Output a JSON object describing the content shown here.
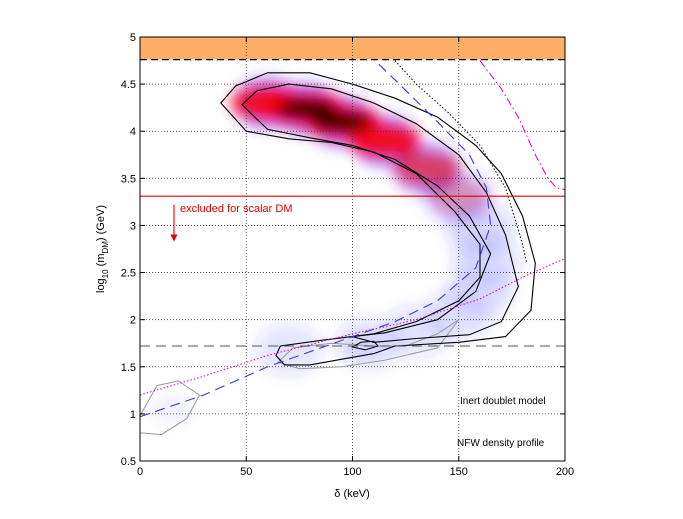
{
  "chart_data": {
    "type": "contour",
    "xlabel": "δ (keV)",
    "ylabel_parts": {
      "a": "log",
      "b": "10",
      "c": " (m",
      "d": "DM",
      "e": ") (GeV)"
    },
    "xlim": [
      0,
      200
    ],
    "ylim": [
      0.5,
      5
    ],
    "xticks": [
      0,
      50,
      100,
      150,
      200
    ],
    "xtick_labels": [
      "0",
      "50",
      "100",
      "150",
      "200"
    ],
    "yticks": [
      0.5,
      1,
      1.5,
      2,
      2.5,
      3,
      3.5,
      4,
      4.5,
      5
    ],
    "ytick_labels": [
      "0.5",
      "1",
      "1.5",
      "2",
      "2.5",
      "3",
      "3.5",
      "4",
      "4.5",
      "5"
    ],
    "grid": true,
    "annotations": {
      "excluded": "excluded for scalar DM",
      "model": "Inert doublet model",
      "profile": "NFW density profile"
    },
    "colors": {
      "band": "#ffae66",
      "red_line": "#e00000",
      "blue_dash": "#3a3ae0",
      "magenta": "#cc00cc",
      "heat_peak": "#000000",
      "heat_mid": "#ff0000",
      "heat_low": "#3232ff"
    },
    "excluded_band": {
      "y_from": 4.76,
      "y_to": 5.0
    },
    "red_line_y": 3.31,
    "arrow": {
      "x": 16,
      "y_from": 3.22,
      "y_to": 2.83
    },
    "lower_dashed_y": 1.72,
    "density_ridge": [
      [
        60,
        4.3,
        26
      ],
      [
        78,
        4.24,
        36
      ],
      [
        95,
        4.1,
        32
      ],
      [
        115,
        3.9,
        26
      ],
      [
        135,
        3.6,
        18
      ],
      [
        150,
        3.3,
        8
      ],
      [
        160,
        2.95,
        3
      ],
      [
        163,
        2.6,
        1.5
      ],
      [
        160,
        2.3,
        1
      ],
      [
        150,
        2.05,
        0.6
      ],
      [
        130,
        1.88,
        0.4
      ],
      [
        108,
        1.75,
        0.3
      ],
      [
        70,
        1.68,
        0.2
      ]
    ],
    "faint_blobs": [
      [
        15,
        1.05,
        0.25
      ],
      [
        105,
        1.72,
        0.35
      ]
    ],
    "outer_contour": [
      [
        38,
        4.3
      ],
      [
        45,
        4.48
      ],
      [
        60,
        4.62
      ],
      [
        80,
        4.62
      ],
      [
        100,
        4.5
      ],
      [
        120,
        4.35
      ],
      [
        140,
        4.15
      ],
      [
        158,
        3.85
      ],
      [
        170,
        3.55
      ],
      [
        180,
        3.1
      ],
      [
        186,
        2.6
      ],
      [
        184,
        2.1
      ],
      [
        172,
        1.82
      ],
      [
        150,
        1.76
      ],
      [
        120,
        1.72
      ],
      [
        110,
        1.64
      ],
      [
        95,
        1.58
      ],
      [
        80,
        1.52
      ],
      [
        68,
        1.52
      ],
      [
        64,
        1.62
      ],
      [
        66,
        1.72
      ],
      [
        85,
        1.78
      ],
      [
        110,
        1.85
      ],
      [
        130,
        1.98
      ],
      [
        150,
        2.2
      ],
      [
        160,
        2.45
      ],
      [
        160,
        2.8
      ],
      [
        148,
        3.15
      ],
      [
        130,
        3.55
      ],
      [
        110,
        3.78
      ],
      [
        90,
        3.88
      ],
      [
        70,
        3.92
      ],
      [
        50,
        4.0
      ],
      [
        38,
        4.3
      ]
    ],
    "inner_contour": [
      [
        48,
        4.28
      ],
      [
        55,
        4.43
      ],
      [
        70,
        4.5
      ],
      [
        90,
        4.45
      ],
      [
        110,
        4.3
      ],
      [
        130,
        4.08
      ],
      [
        150,
        3.75
      ],
      [
        163,
        3.35
      ],
      [
        172,
        2.9
      ],
      [
        178,
        2.35
      ],
      [
        170,
        1.98
      ],
      [
        155,
        1.84
      ],
      [
        130,
        1.8
      ],
      [
        110,
        1.76
      ],
      [
        100,
        1.82
      ],
      [
        115,
        1.86
      ],
      [
        140,
        2.0
      ],
      [
        158,
        2.3
      ],
      [
        165,
        2.7
      ],
      [
        155,
        3.1
      ],
      [
        140,
        3.42
      ],
      [
        120,
        3.7
      ],
      [
        100,
        3.85
      ],
      [
        80,
        3.93
      ],
      [
        60,
        4.02
      ],
      [
        48,
        4.28
      ]
    ],
    "small_contour": [
      [
        100,
        1.71
      ],
      [
        104,
        1.76
      ],
      [
        110,
        1.77
      ],
      [
        112,
        1.72
      ],
      [
        106,
        1.68
      ],
      [
        100,
        1.71
      ]
    ],
    "faint_contour_upper": [
      [
        65,
        1.55
      ],
      [
        72,
        1.7
      ],
      [
        90,
        1.75
      ],
      [
        110,
        1.72
      ],
      [
        125,
        1.72
      ],
      [
        140,
        1.85
      ],
      [
        150,
        2.0
      ],
      [
        140,
        1.7
      ],
      [
        115,
        1.57
      ],
      [
        95,
        1.5
      ],
      [
        75,
        1.48
      ],
      [
        65,
        1.55
      ]
    ],
    "faint_contour_lower": [
      [
        0,
        0.98
      ],
      [
        8,
        1.3
      ],
      [
        18,
        1.35
      ],
      [
        28,
        1.2
      ],
      [
        22,
        0.95
      ],
      [
        10,
        0.78
      ],
      [
        0,
        0.8
      ]
    ],
    "blue_dashed_curve": [
      [
        0,
        0.97
      ],
      [
        30,
        1.2
      ],
      [
        60,
        1.5
      ],
      [
        95,
        1.78
      ],
      [
        120,
        1.98
      ],
      [
        140,
        2.2
      ],
      [
        158,
        2.55
      ],
      [
        165,
        3.0
      ],
      [
        163,
        3.4
      ],
      [
        155,
        3.75
      ],
      [
        140,
        4.1
      ],
      [
        122,
        4.5
      ],
      [
        112,
        4.72
      ]
    ],
    "black_dotted_curve": [
      [
        120,
        4.75
      ],
      [
        130,
        4.5
      ],
      [
        145,
        4.2
      ],
      [
        160,
        3.85
      ],
      [
        172,
        3.4
      ],
      [
        180,
        2.8
      ],
      [
        182,
        2.6
      ]
    ],
    "magenta_dotted_curve": [
      [
        0,
        1.2
      ],
      [
        30,
        1.4
      ],
      [
        60,
        1.62
      ],
      [
        100,
        1.85
      ],
      [
        130,
        2.0
      ],
      [
        160,
        2.22
      ],
      [
        180,
        2.45
      ],
      [
        200,
        2.65
      ]
    ],
    "magenta_dashdot_curve": [
      [
        160,
        4.75
      ],
      [
        170,
        4.45
      ],
      [
        178,
        4.15
      ],
      [
        186,
        3.75
      ],
      [
        192,
        3.5
      ],
      [
        196,
        3.4
      ],
      [
        200,
        3.38
      ]
    ]
  }
}
